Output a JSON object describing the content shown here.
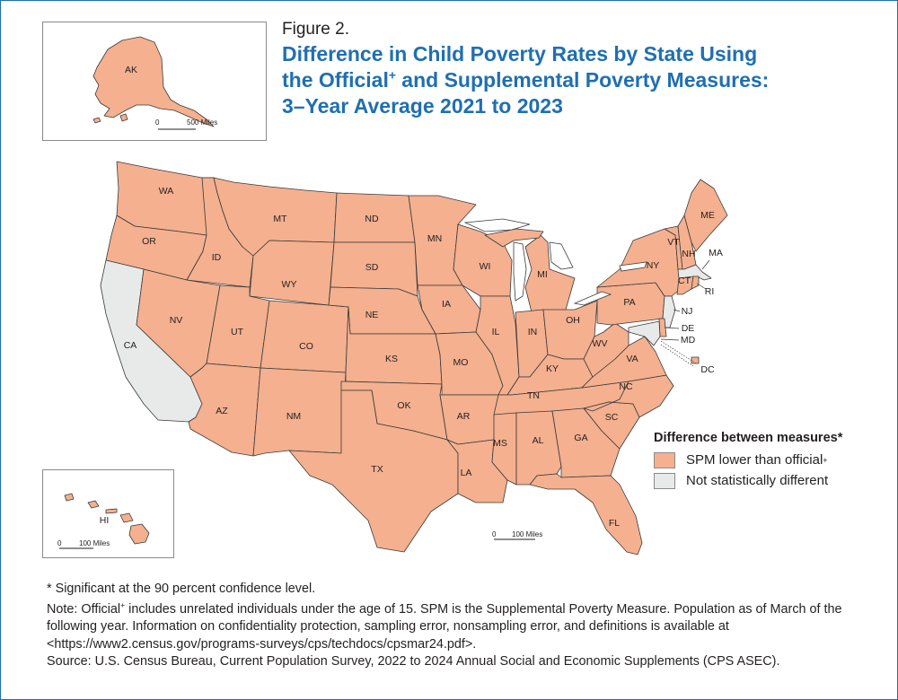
{
  "figure_label": "Figure 2.",
  "title": {
    "line1": "Difference in Child Poverty Rates by State Using",
    "line2_pre": "the Official",
    "line2_sup": "+",
    "line2_post": " and Supplemental Poverty Measures:",
    "line3": "3–Year Average 2021 to 2023"
  },
  "colors": {
    "lower": "#f4b08f",
    "not_different": "#e8e9e9",
    "border": "#3a3a3a",
    "title": "#1f6fb2"
  },
  "legend": {
    "title": "Difference between measures*",
    "items": [
      {
        "label": "SPM lower than official",
        "sup": "+",
        "category": "lower"
      },
      {
        "label": "Not statistically different",
        "sup": "",
        "category": "not_different"
      }
    ]
  },
  "insets": {
    "alaska": {
      "label": "AK",
      "scale_zero": "0",
      "scale_label": "500 Miles"
    },
    "hawaii": {
      "label": "HI",
      "scale_zero": "0",
      "scale_label": "100 Miles"
    }
  },
  "main_scale": {
    "zero": "0",
    "label": "100 Miles"
  },
  "states": [
    {
      "abbr": "WA",
      "category": "lower"
    },
    {
      "abbr": "OR",
      "category": "lower"
    },
    {
      "abbr": "CA",
      "category": "not_different"
    },
    {
      "abbr": "ID",
      "category": "lower"
    },
    {
      "abbr": "NV",
      "category": "lower"
    },
    {
      "abbr": "MT",
      "category": "lower"
    },
    {
      "abbr": "WY",
      "category": "lower"
    },
    {
      "abbr": "UT",
      "category": "lower"
    },
    {
      "abbr": "AZ",
      "category": "lower"
    },
    {
      "abbr": "CO",
      "category": "lower"
    },
    {
      "abbr": "NM",
      "category": "lower"
    },
    {
      "abbr": "ND",
      "category": "lower"
    },
    {
      "abbr": "SD",
      "category": "lower"
    },
    {
      "abbr": "NE",
      "category": "lower"
    },
    {
      "abbr": "KS",
      "category": "lower"
    },
    {
      "abbr": "OK",
      "category": "lower"
    },
    {
      "abbr": "TX",
      "category": "lower"
    },
    {
      "abbr": "MN",
      "category": "lower"
    },
    {
      "abbr": "IA",
      "category": "lower"
    },
    {
      "abbr": "MO",
      "category": "lower"
    },
    {
      "abbr": "AR",
      "category": "lower"
    },
    {
      "abbr": "LA",
      "category": "lower"
    },
    {
      "abbr": "WI",
      "category": "lower"
    },
    {
      "abbr": "IL",
      "category": "lower"
    },
    {
      "abbr": "MI",
      "category": "lower"
    },
    {
      "abbr": "IN",
      "category": "lower"
    },
    {
      "abbr": "OH",
      "category": "lower"
    },
    {
      "abbr": "KY",
      "category": "lower"
    },
    {
      "abbr": "TN",
      "category": "lower"
    },
    {
      "abbr": "MS",
      "category": "lower"
    },
    {
      "abbr": "AL",
      "category": "lower"
    },
    {
      "abbr": "GA",
      "category": "lower"
    },
    {
      "abbr": "FL",
      "category": "lower"
    },
    {
      "abbr": "SC",
      "category": "lower"
    },
    {
      "abbr": "NC",
      "category": "lower"
    },
    {
      "abbr": "VA",
      "category": "lower"
    },
    {
      "abbr": "WV",
      "category": "lower"
    },
    {
      "abbr": "PA",
      "category": "lower"
    },
    {
      "abbr": "NY",
      "category": "lower"
    },
    {
      "abbr": "VT",
      "category": "lower"
    },
    {
      "abbr": "NH",
      "category": "lower"
    },
    {
      "abbr": "ME",
      "category": "lower"
    },
    {
      "abbr": "MA",
      "category": "not_different"
    },
    {
      "abbr": "CT",
      "category": "lower"
    },
    {
      "abbr": "RI",
      "category": "lower"
    },
    {
      "abbr": "NJ",
      "category": "not_different"
    },
    {
      "abbr": "DE",
      "category": "lower"
    },
    {
      "abbr": "MD",
      "category": "not_different"
    },
    {
      "abbr": "DC",
      "category": "lower"
    },
    {
      "abbr": "AK",
      "category": "lower"
    },
    {
      "abbr": "HI",
      "category": "lower"
    }
  ],
  "footnote": "* Significant at the 90 percent confidence level.",
  "note": {
    "pre": "Note: Official",
    "sup": "+",
    "post": " includes unrelated individuals under the age of 15. SPM is the Supplemental Poverty Measure. Population as of March of the following year. Information on confidentiality protection, sampling error, nonsampling error, and definitions is available at <https://www2.census.gov/programs-surveys/cps/techdocs/cpsmar24.pdf>."
  },
  "source": "Source: U.S. Census Bureau, Current Population Survey, 2022 to 2024 Annual Social and Economic Supplements (CPS ASEC)."
}
